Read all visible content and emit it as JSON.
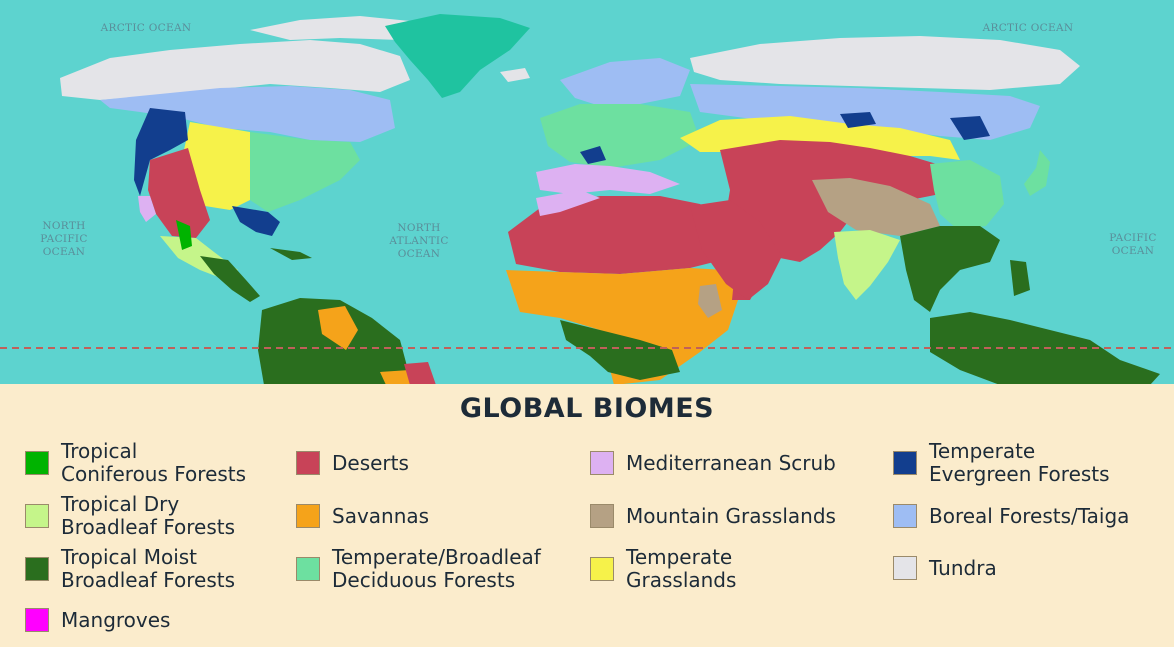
{
  "title": "GLOBAL BIOMES",
  "ocean_labels": {
    "arctic_west": "ARCTIC OCEAN",
    "arctic_east": "ARCTIC OCEAN",
    "north_pacific": "NORTH\nPACIFIC\nOCEAN",
    "north_atlantic": "NORTH\nATLANTIC\nOCEAN",
    "pacific": "PACIFIC\nOCEAN"
  },
  "colors": {
    "ocean": "#5dd3cf",
    "equator_line": "#c0605a",
    "tropical_coniferous": "#00b300",
    "tropical_dry": "#c5f58a",
    "tropical_moist": "#2a6e1e",
    "mangroves": "#ff00ff",
    "deserts": "#c84358",
    "savannas": "#f5a31a",
    "temperate_broadleaf": "#6de0a0",
    "mediterranean": "#ddb1f2",
    "mountain_grasslands": "#b5a184",
    "temperate_grasslands": "#f6f24a",
    "temperate_evergreen": "#123e8e",
    "boreal": "#9ebdf3",
    "tundra": "#e4e4e8",
    "greenland": "#1fc3a0"
  },
  "legend": [
    {
      "label": "Tropical\nConiferous Forests",
      "color": "#00b300"
    },
    {
      "label": "Tropical Dry\nBroadleaf Forests",
      "color": "#c5f58a"
    },
    {
      "label": "Tropical Moist\nBroadleaf Forests",
      "color": "#2a6e1e"
    },
    {
      "label": "Mangroves",
      "color": "#ff00ff"
    },
    {
      "label": "Deserts",
      "color": "#c84358"
    },
    {
      "label": "Savannas",
      "color": "#f5a31a"
    },
    {
      "label": "Temperate/Broadleaf\nDeciduous Forests",
      "color": "#6de0a0"
    },
    {
      "label": "Mediterranean Scrub",
      "color": "#ddb1f2"
    },
    {
      "label": "Mountain Grasslands",
      "color": "#b5a184"
    },
    {
      "label": "Temperate\nGrasslands",
      "color": "#f6f24a"
    },
    {
      "label": "Temperate\nEvergreen Forests",
      "color": "#123e8e"
    },
    {
      "label": "Boreal Forests/Taiga",
      "color": "#9ebdf3"
    },
    {
      "label": "Tundra",
      "color": "#e4e4e8"
    }
  ]
}
